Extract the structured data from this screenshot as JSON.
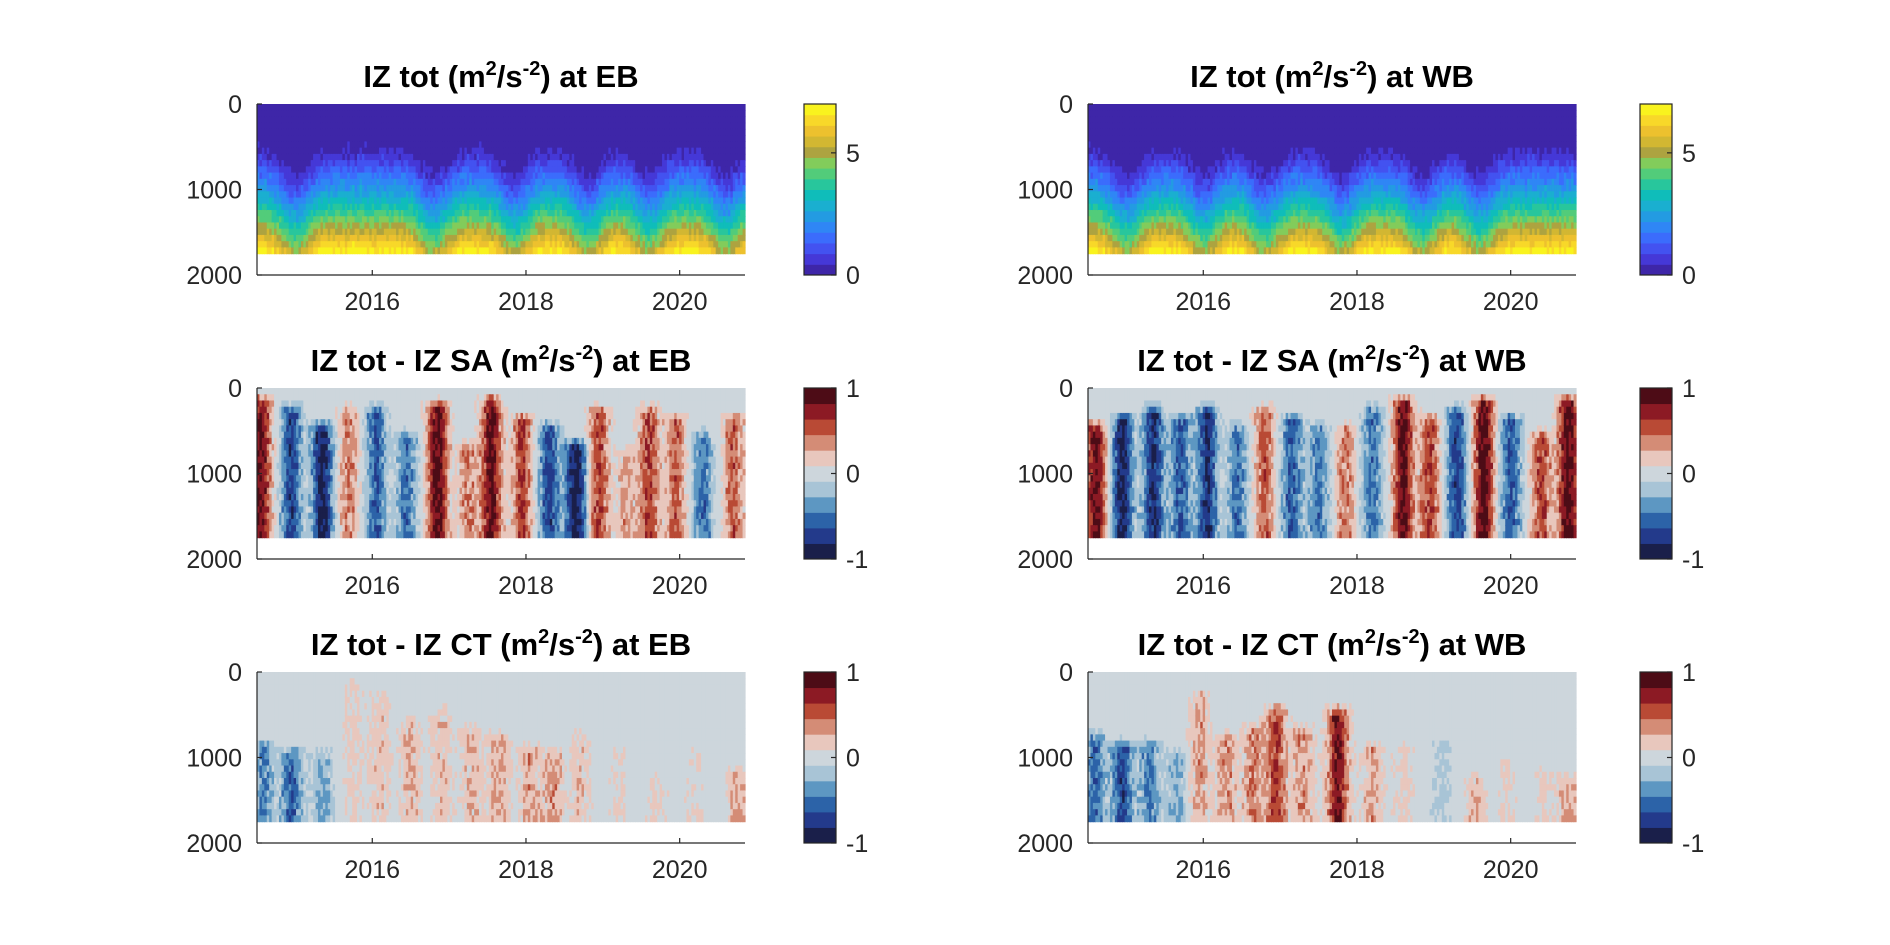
{
  "chart_data": [
    {
      "type": "heatmap",
      "panel": "eb-total",
      "title": {
        "pre": "IZ tot (m",
        "sup1": "2",
        "mid": "/s",
        "sup2": "-2",
        "post": ") at EB"
      },
      "x_ticks": [
        "2016",
        "2018",
        "2020"
      ],
      "x_tick_values": [
        2016,
        2018,
        2020
      ],
      "xlim": [
        2014.5,
        2020.85
      ],
      "y_ticks": [
        "0",
        "1000",
        "2000"
      ],
      "y_tick_values": [
        0,
        1000,
        2000
      ],
      "ylim": [
        0,
        2000
      ],
      "y_reversed": true,
      "data_depth_range": [
        0,
        1750
      ],
      "colorbar": {
        "type": "parula",
        "ticks": [
          "0",
          "5"
        ],
        "tick_values": [
          0,
          5
        ],
        "range": [
          0,
          7
        ]
      },
      "peaks": [
        2015.0,
        2016.8,
        2017.85,
        2018.8,
        2019.6,
        2020.6
      ],
      "field": "Total IZ increases with depth from ~0 near surface to ~7 at 1750 m; deep blue layer deepens seasonally with peaks near mid-year"
    },
    {
      "type": "heatmap",
      "panel": "wb-total",
      "title": {
        "pre": "IZ tot (m",
        "sup1": "2",
        "mid": "/s",
        "sup2": "-2",
        "post": ")  at WB"
      },
      "x_ticks": [
        "2016",
        "2018",
        "2020"
      ],
      "x_tick_values": [
        2016,
        2018,
        2020
      ],
      "xlim": [
        2014.5,
        2020.85
      ],
      "y_ticks": [
        "0",
        "1000",
        "2000"
      ],
      "y_tick_values": [
        0,
        1000,
        2000
      ],
      "ylim": [
        0,
        2000
      ],
      "y_reversed": true,
      "data_depth_range": [
        0,
        1750
      ],
      "colorbar": {
        "type": "parula",
        "ticks": [
          "0",
          "5"
        ],
        "tick_values": [
          0,
          5
        ],
        "range": [
          0,
          7
        ]
      },
      "peaks": [
        2015.0,
        2016.0,
        2016.8,
        2017.8,
        2018.85,
        2019.6
      ],
      "field": "Total IZ increases with depth from ~0 near surface to ~7 at 1750 m; shallower gradient at WB"
    },
    {
      "type": "heatmap",
      "panel": "eb-sa",
      "title": {
        "pre": "IZ tot - IZ SA (m",
        "sup1": "2",
        "mid": "/s",
        "sup2": "-2",
        "post": ")  at EB"
      },
      "x_ticks": [
        "2016",
        "2018",
        "2020"
      ],
      "x_tick_values": [
        2016,
        2018,
        2020
      ],
      "xlim": [
        2014.5,
        2020.85
      ],
      "y_ticks": [
        "0",
        "1000",
        "2000"
      ],
      "y_tick_values": [
        0,
        1000,
        2000
      ],
      "ylim": [
        0,
        2000
      ],
      "y_reversed": true,
      "data_depth_range": [
        0,
        1750
      ],
      "colorbar": {
        "type": "diverging",
        "ticks": [
          "-1",
          "0",
          "1"
        ],
        "tick_values": [
          -1,
          0,
          1
        ],
        "range": [
          -1,
          1
        ]
      },
      "bands": [
        [
          2014.55,
          0.85,
          200
        ],
        [
          2014.95,
          -0.7,
          300
        ],
        [
          2015.35,
          -0.9,
          500
        ],
        [
          2015.7,
          0.4,
          300
        ],
        [
          2016.05,
          -0.6,
          300
        ],
        [
          2016.45,
          -0.5,
          600
        ],
        [
          2016.85,
          0.9,
          250
        ],
        [
          2017.25,
          0.4,
          700
        ],
        [
          2017.55,
          0.85,
          200
        ],
        [
          2017.95,
          0.6,
          400
        ],
        [
          2018.3,
          -0.7,
          500
        ],
        [
          2018.65,
          -0.95,
          700
        ],
        [
          2018.95,
          0.6,
          300
        ],
        [
          2019.3,
          0.3,
          800
        ],
        [
          2019.6,
          0.6,
          300
        ],
        [
          2019.95,
          0.5,
          400
        ],
        [
          2020.3,
          -0.5,
          600
        ],
        [
          2020.7,
          0.5,
          400
        ]
      ],
      "field": "Salinity contribution anomaly, alternating positive (red) and negative (blue) vertical bands"
    },
    {
      "type": "heatmap",
      "panel": "wb-sa",
      "title": {
        "pre": "IZ tot - IZ SA (m",
        "sup1": "2",
        "mid": "/s",
        "sup2": "-2",
        "post": ")  at WB"
      },
      "x_ticks": [
        "2016",
        "2018",
        "2020"
      ],
      "x_tick_values": [
        2016,
        2018,
        2020
      ],
      "xlim": [
        2014.5,
        2020.85
      ],
      "y_ticks": [
        "0",
        "1000",
        "2000"
      ],
      "y_tick_values": [
        0,
        1000,
        2000
      ],
      "ylim": [
        0,
        2000
      ],
      "y_reversed": true,
      "data_depth_range": [
        0,
        1750
      ],
      "colorbar": {
        "type": "diverging",
        "ticks": [
          "-1",
          "0",
          "1"
        ],
        "tick_values": [
          -1,
          0,
          1
        ],
        "range": [
          -1,
          1
        ]
      },
      "bands": [
        [
          2014.6,
          0.9,
          500
        ],
        [
          2014.95,
          -0.9,
          400
        ],
        [
          2015.35,
          -0.8,
          300
        ],
        [
          2015.7,
          -0.6,
          400
        ],
        [
          2016.05,
          -0.8,
          300
        ],
        [
          2016.45,
          -0.5,
          500
        ],
        [
          2016.8,
          0.5,
          300
        ],
        [
          2017.15,
          -0.6,
          400
        ],
        [
          2017.5,
          -0.5,
          500
        ],
        [
          2017.85,
          0.4,
          500
        ],
        [
          2018.2,
          -0.5,
          300
        ],
        [
          2018.6,
          0.9,
          200
        ],
        [
          2018.95,
          0.6,
          400
        ],
        [
          2019.3,
          -0.7,
          300
        ],
        [
          2019.65,
          0.95,
          200
        ],
        [
          2020.0,
          -0.6,
          400
        ],
        [
          2020.4,
          0.6,
          600
        ],
        [
          2020.75,
          0.95,
          200
        ]
      ],
      "field": "Salinity contribution anomaly at WB, strong alternating bands"
    },
    {
      "type": "heatmap",
      "panel": "eb-ct",
      "title": {
        "pre": "IZ tot - IZ CT (m",
        "sup1": "2",
        "mid": "/s",
        "sup2": "-2",
        "post": ")  at EB"
      },
      "x_ticks": [
        "2016",
        "2018",
        "2020"
      ],
      "x_tick_values": [
        2016,
        2018,
        2020
      ],
      "xlim": [
        2014.5,
        2020.85
      ],
      "y_ticks": [
        "0",
        "1000",
        "2000"
      ],
      "y_tick_values": [
        0,
        1000,
        2000
      ],
      "ylim": [
        0,
        2000
      ],
      "y_reversed": true,
      "data_depth_range": [
        0,
        1750
      ],
      "colorbar": {
        "type": "diverging",
        "ticks": [
          "-1",
          "0",
          "1"
        ],
        "tick_values": [
          -1,
          0,
          1
        ],
        "range": [
          -1,
          1
        ]
      },
      "bands": [
        [
          2014.6,
          -0.4,
          900
        ],
        [
          2014.95,
          -0.6,
          1000
        ],
        [
          2015.35,
          -0.3,
          1000
        ],
        [
          2015.75,
          0.15,
          200
        ],
        [
          2016.1,
          0.2,
          300
        ],
        [
          2016.5,
          0.25,
          600
        ],
        [
          2016.9,
          0.2,
          500
        ],
        [
          2017.3,
          0.25,
          700
        ],
        [
          2017.65,
          0.3,
          800
        ],
        [
          2018.05,
          0.3,
          900
        ],
        [
          2018.35,
          0.35,
          1000
        ],
        [
          2018.7,
          0.2,
          800
        ],
        [
          2019.2,
          0.1,
          900
        ],
        [
          2019.7,
          0.15,
          1300
        ],
        [
          2020.2,
          0.1,
          1000
        ],
        [
          2020.75,
          0.3,
          1200
        ]
      ],
      "field": "Temperature contribution anomaly, weak positive values after 2016, negative early"
    },
    {
      "type": "heatmap",
      "panel": "wb-ct",
      "title": {
        "pre": "IZ tot - IZ CT (m",
        "sup1": "2",
        "mid": "/s",
        "sup2": "-2",
        "post": ") at WB"
      },
      "x_ticks": [
        "2016",
        "2018",
        "2020"
      ],
      "x_tick_values": [
        2016,
        2018,
        2020
      ],
      "xlim": [
        2014.5,
        2020.85
      ],
      "y_ticks": [
        "0",
        "1000",
        "2000"
      ],
      "y_tick_values": [
        0,
        1000,
        2000
      ],
      "ylim": [
        0,
        2000
      ],
      "y_reversed": true,
      "data_depth_range": [
        0,
        1750
      ],
      "colorbar": {
        "type": "diverging",
        "ticks": [
          "-1",
          "0",
          "1"
        ],
        "tick_values": [
          -1,
          0,
          1
        ],
        "range": [
          -1,
          1
        ]
      },
      "bands": [
        [
          2014.6,
          -0.5,
          800
        ],
        [
          2014.95,
          -0.7,
          900
        ],
        [
          2015.3,
          -0.45,
          900
        ],
        [
          2015.65,
          -0.3,
          1000
        ],
        [
          2015.95,
          0.3,
          300
        ],
        [
          2016.3,
          0.35,
          800
        ],
        [
          2016.65,
          0.4,
          700
        ],
        [
          2016.95,
          0.6,
          500
        ],
        [
          2017.3,
          0.35,
          700
        ],
        [
          2017.75,
          0.8,
          500
        ],
        [
          2018.2,
          0.3,
          900
        ],
        [
          2018.6,
          0.15,
          900
        ],
        [
          2019.1,
          -0.15,
          900
        ],
        [
          2019.55,
          0.25,
          1300
        ],
        [
          2019.95,
          0.1,
          1100
        ],
        [
          2020.45,
          0.15,
          1200
        ],
        [
          2020.75,
          0.3,
          1300
        ]
      ],
      "field": "Temperature contribution anomaly at WB, strong positive bands 2016-2018, negative early"
    }
  ]
}
